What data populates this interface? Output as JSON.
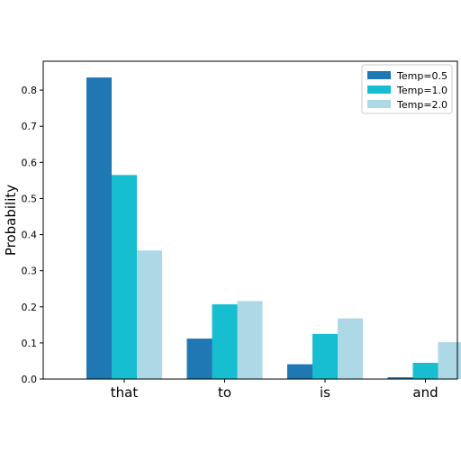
{
  "chart_data": {
    "type": "bar",
    "categories": [
      "that",
      "to",
      "is",
      "and"
    ],
    "series": [
      {
        "name": "Temp=0.5",
        "color": "#1f77b4",
        "values": [
          0.835,
          0.112,
          0.041,
          0.005
        ]
      },
      {
        "name": "Temp=1.0",
        "color": "#17becf",
        "values": [
          0.565,
          0.207,
          0.125,
          0.045
        ]
      },
      {
        "name": "Temp=2.0",
        "color": "#add8e6",
        "values": [
          0.356,
          0.216,
          0.168,
          0.102
        ]
      }
    ],
    "title": "",
    "xlabel": "",
    "ylabel": "Probability",
    "ylim": [
      0,
      0.88
    ],
    "yticks": [
      0.0,
      0.1,
      0.2,
      0.3,
      0.4,
      0.5,
      0.6,
      0.7,
      0.8
    ],
    "ytick_labels": [
      "0.0",
      "0.1",
      "0.2",
      "0.3",
      "0.4",
      "0.5",
      "0.6",
      "0.7",
      "0.8"
    ],
    "grid": false,
    "legend_position": "top-right"
  }
}
